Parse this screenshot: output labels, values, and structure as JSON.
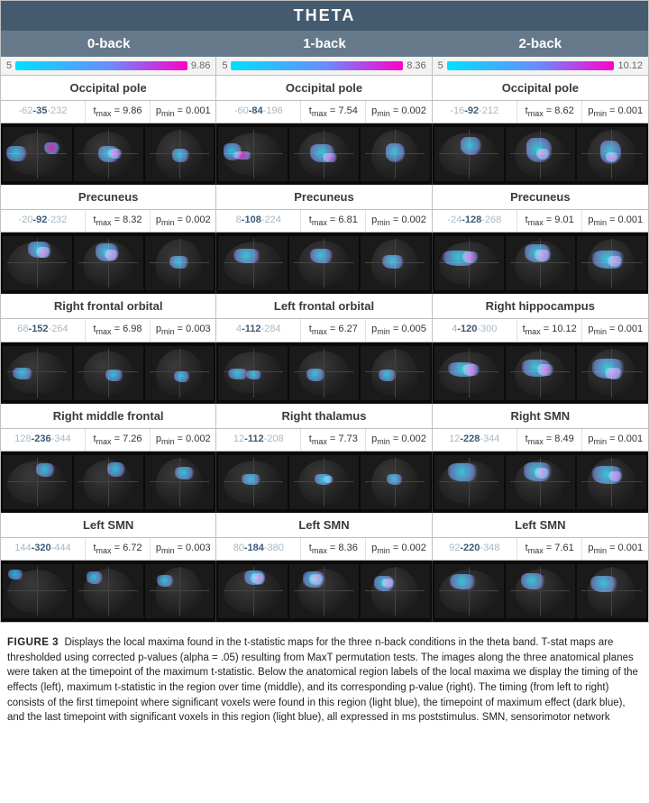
{
  "colors": {
    "header_bg": "#445a6f",
    "subheader_bg": "#66798a",
    "grid_border": "#c0c0c0",
    "brain_bg": "#0a0a0a",
    "gradient_start": "#00e0ff",
    "gradient_mid": "#6a8cff",
    "gradient_end": "#ff00c8",
    "timing_light": "#a8b8c4",
    "timing_dark": "#3a5a78"
  },
  "title": "THETA",
  "columns": [
    "0-back",
    "1-back",
    "2-back"
  ],
  "gradient": {
    "min": 5,
    "max": [
      9.86,
      8.36,
      10.12
    ]
  },
  "rows": [
    {
      "regions": [
        "Occipital pole",
        "Occipital pole",
        "Occipital pole"
      ],
      "stats": [
        {
          "timing": [
            -62,
            -35,
            -232
          ],
          "tmax": 9.86,
          "pmin": 0.001
        },
        {
          "timing": [
            -60,
            -84,
            -196
          ],
          "tmax": 7.54,
          "pmin": 0.002
        },
        {
          "timing": [
            -16,
            -92,
            -212
          ],
          "tmax": 8.62,
          "pmin": 0.001
        }
      ],
      "blobs": [
        [
          [
            [
              "5",
              "35",
              "30",
              "28",
              "c"
            ],
            [
              "60",
              "28",
              "24",
              "22",
              "m"
            ]
          ],
          [
            [
              "35",
              "34",
              "32",
              "30",
              "c"
            ],
            [
              "50",
              "40",
              "20",
              "18",
              "m"
            ]
          ],
          [
            [
              "40",
              "40",
              "24",
              "24",
              "c"
            ]
          ]
        ],
        [
          [
            [
              "8",
              "30",
              "26",
              "32",
              "c"
            ],
            [
              "20",
              "44",
              "30",
              "16",
              "m"
            ]
          ],
          [
            [
              "30",
              "32",
              "36",
              "32",
              "c"
            ],
            [
              "48",
              "48",
              "22",
              "16",
              "m"
            ]
          ],
          [
            [
              "36",
              "30",
              "28",
              "34",
              "c"
            ]
          ]
        ],
        [
          [
            [
              "38",
              "18",
              "30",
              "34",
              "c"
            ]
          ],
          [
            [
              "30",
              "20",
              "36",
              "44",
              "c"
            ],
            [
              "44",
              "40",
              "20",
              "20",
              "m"
            ]
          ],
          [
            [
              "34",
              "24",
              "30",
              "44",
              "c"
            ],
            [
              "42",
              "46",
              "18",
              "18",
              "m"
            ]
          ]
        ]
      ]
    },
    {
      "regions": [
        "Precuneus",
        "Precuneus",
        "Precuneus"
      ],
      "stats": [
        {
          "timing": [
            -20,
            -92,
            -232
          ],
          "tmax": 8.32,
          "pmin": 0.002
        },
        {
          "timing": [
            8,
            -108,
            -224
          ],
          "tmax": 6.81,
          "pmin": 0.002
        },
        {
          "timing": [
            -24,
            -128,
            -268
          ],
          "tmax": 9.01,
          "pmin": 0.001
        }
      ],
      "blobs": [
        [
          [
            [
              "36",
              "10",
              "34",
              "30",
              "c"
            ],
            [
              "48",
              "20",
              "22",
              "20",
              "m"
            ]
          ],
          [
            [
              "32",
              "12",
              "34",
              "34",
              "c"
            ],
            [
              "44",
              "24",
              "22",
              "20",
              "m"
            ]
          ],
          [
            [
              "36",
              "36",
              "28",
              "24",
              "c"
            ]
          ]
        ],
        [
          [
            [
              "22",
              "22",
              "40",
              "28",
              "c"
            ]
          ],
          [
            [
              "30",
              "22",
              "34",
              "28",
              "c"
            ]
          ],
          [
            [
              "32",
              "34",
              "32",
              "26",
              "c"
            ]
          ]
        ],
        [
          [
            [
              "12",
              "26",
              "50",
              "28",
              "c"
            ],
            [
              "40",
              "28",
              "24",
              "22",
              "m"
            ]
          ],
          [
            [
              "28",
              "14",
              "38",
              "34",
              "c"
            ],
            [
              "42",
              "24",
              "24",
              "22",
              "m"
            ]
          ],
          [
            [
              "22",
              "26",
              "48",
              "34",
              "c"
            ],
            [
              "44",
              "36",
              "22",
              "20",
              "m"
            ]
          ]
        ]
      ]
    },
    {
      "regions": [
        "Right frontal orbital",
        "Left frontal orbital",
        "Right hippocampus"
      ],
      "stats": [
        {
          "timing": [
            68,
            -152,
            -264
          ],
          "tmax": 6.98,
          "pmin": 0.003
        },
        {
          "timing": [
            4,
            -112,
            -284
          ],
          "tmax": 6.27,
          "pmin": 0.005
        },
        {
          "timing": [
            4,
            -120,
            -300
          ],
          "tmax": 10.12,
          "pmin": 0.001
        }
      ],
      "blobs": [
        [
          [
            [
              "14",
              "40",
              "30",
              "22",
              "c"
            ]
          ],
          [
            [
              "46",
              "44",
              "26",
              "22",
              "c"
            ]
          ],
          [
            [
              "42",
              "48",
              "24",
              "20",
              "c"
            ]
          ]
        ],
        [
          [
            [
              "14",
              "42",
              "30",
              "20",
              "c"
            ],
            [
              "40",
              "46",
              "24",
              "16",
              "c"
            ]
          ],
          [
            [
              "24",
              "42",
              "28",
              "24",
              "c"
            ]
          ],
          [
            [
              "26",
              "44",
              "26",
              "22",
              "c"
            ]
          ]
        ],
        [
          [
            [
              "20",
              "30",
              "44",
              "28",
              "c"
            ],
            [
              "40",
              "34",
              "26",
              "22",
              "m"
            ]
          ],
          [
            [
              "24",
              "26",
              "44",
              "32",
              "c"
            ],
            [
              "46",
              "34",
              "24",
              "22",
              "m"
            ]
          ],
          [
            [
              "22",
              "24",
              "48",
              "36",
              "c"
            ],
            [
              "40",
              "40",
              "26",
              "22",
              "m"
            ]
          ]
        ]
      ]
    },
    {
      "regions": [
        "Right middle frontal",
        "Right thalamus",
        "Right SMN"
      ],
      "stats": [
        {
          "timing": [
            128,
            -236,
            -344
          ],
          "tmax": 7.26,
          "pmin": 0.002
        },
        {
          "timing": [
            12,
            -112,
            -208
          ],
          "tmax": 7.73,
          "pmin": 0.002
        },
        {
          "timing": [
            12,
            -228,
            -344
          ],
          "tmax": 8.49,
          "pmin": 0.001
        }
      ],
      "blobs": [
        [
          [
            [
              "48",
              "16",
              "28",
              "24",
              "c"
            ]
          ],
          [
            [
              "48",
              "14",
              "26",
              "26",
              "c"
            ]
          ],
          [
            [
              "44",
              "22",
              "28",
              "24",
              "c"
            ]
          ]
        ],
        [
          [
            [
              "34",
              "36",
              "28",
              "20",
              "c"
            ]
          ],
          [
            [
              "36",
              "36",
              "26",
              "20",
              "c"
            ],
            [
              "50",
              "38",
              "14",
              "14",
              "c"
            ]
          ],
          [
            [
              "38",
              "36",
              "24",
              "20",
              "c"
            ]
          ]
        ],
        [
          [
            [
              "20",
              "16",
              "44",
              "32",
              "c"
            ]
          ],
          [
            [
              "26",
              "14",
              "42",
              "34",
              "c"
            ],
            [
              "42",
              "24",
              "22",
              "20",
              "m"
            ]
          ],
          [
            [
              "22",
              "20",
              "46",
              "34",
              "c"
            ],
            [
              "46",
              "30",
              "20",
              "18",
              "m"
            ]
          ]
        ]
      ]
    },
    {
      "regions": [
        "Left SMN",
        "Left SMN",
        "Left SMN"
      ],
      "stats": [
        {
          "timing": [
            144,
            -320,
            -444
          ],
          "tmax": 6.72,
          "pmin": 0.003
        },
        {
          "timing": [
            80,
            -184,
            -380
          ],
          "tmax": 8.36,
          "pmin": 0.002
        },
        {
          "timing": [
            92,
            -220,
            -348
          ],
          "tmax": 7.61,
          "pmin": 0.001
        }
      ],
      "blobs": [
        [
          [
            [
              "8",
              "10",
              "22",
              "18",
              "c"
            ]
          ],
          [
            [
              "18",
              "14",
              "24",
              "22",
              "c"
            ]
          ],
          [
            [
              "18",
              "20",
              "24",
              "22",
              "c"
            ]
          ]
        ],
        [
          [
            [
              "38",
              "12",
              "30",
              "26",
              "c"
            ],
            [
              "46",
              "16",
              "22",
              "20",
              "m"
            ]
          ],
          [
            [
              "20",
              "14",
              "32",
              "30",
              "c"
            ],
            [
              "28",
              "18",
              "22",
              "20",
              "m"
            ]
          ],
          [
            [
              "20",
              "22",
              "30",
              "28",
              "c"
            ],
            [
              "30",
              "26",
              "20",
              "18",
              "m"
            ]
          ]
        ],
        [
          [
            [
              "22",
              "18",
              "40",
              "28",
              "c"
            ]
          ],
          [
            [
              "22",
              "16",
              "36",
              "30",
              "c"
            ]
          ],
          [
            [
              "20",
              "22",
              "40",
              "30",
              "c"
            ]
          ]
        ]
      ]
    }
  ],
  "caption": {
    "label": "FIGURE 3",
    "text": "Displays the local maxima found in the t-statistic maps for the three n-back conditions in the theta band. T-stat maps are thresholded using corrected p-values (alpha = .05) resulting from MaxT permutation tests. The images along the three anatomical planes were taken at the timepoint of the maximum t-statistic. Below the anatomical region labels of the local maxima we display the timing of the effects (left), maximum t-statistic in the region over time (middle), and its corresponding p-value (right). The timing (from left to right) consists of the first timepoint where significant voxels were found in this region (light blue), the timepoint of maximum effect (dark blue), and the last timepoint with significant voxels in this region (light blue), all expressed in ms poststimulus. SMN, sensorimotor network"
  }
}
